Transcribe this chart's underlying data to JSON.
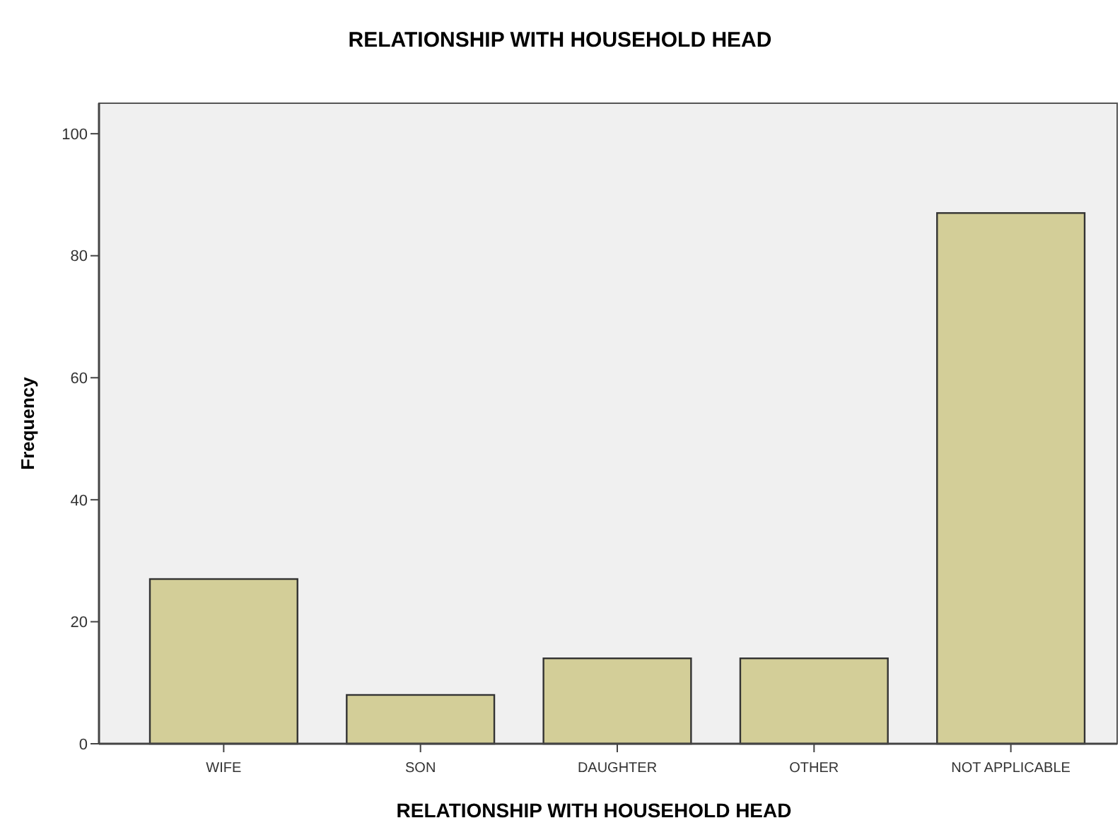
{
  "chart_data": {
    "type": "bar",
    "title": "RELATIONSHIP WITH HOUSEHOLD HEAD",
    "xlabel": "RELATIONSHIP WITH HOUSEHOLD HEAD",
    "ylabel": "Frequency",
    "categories": [
      "WIFE",
      "SON",
      "DAUGHTER",
      "OTHER",
      "NOT APPLICABLE"
    ],
    "values": [
      27,
      8,
      14,
      14,
      87
    ],
    "color": "#d3ce98",
    "ylim": [
      0,
      105
    ],
    "yticks": [
      0,
      20,
      40,
      60,
      80,
      100
    ],
    "grid": false
  }
}
